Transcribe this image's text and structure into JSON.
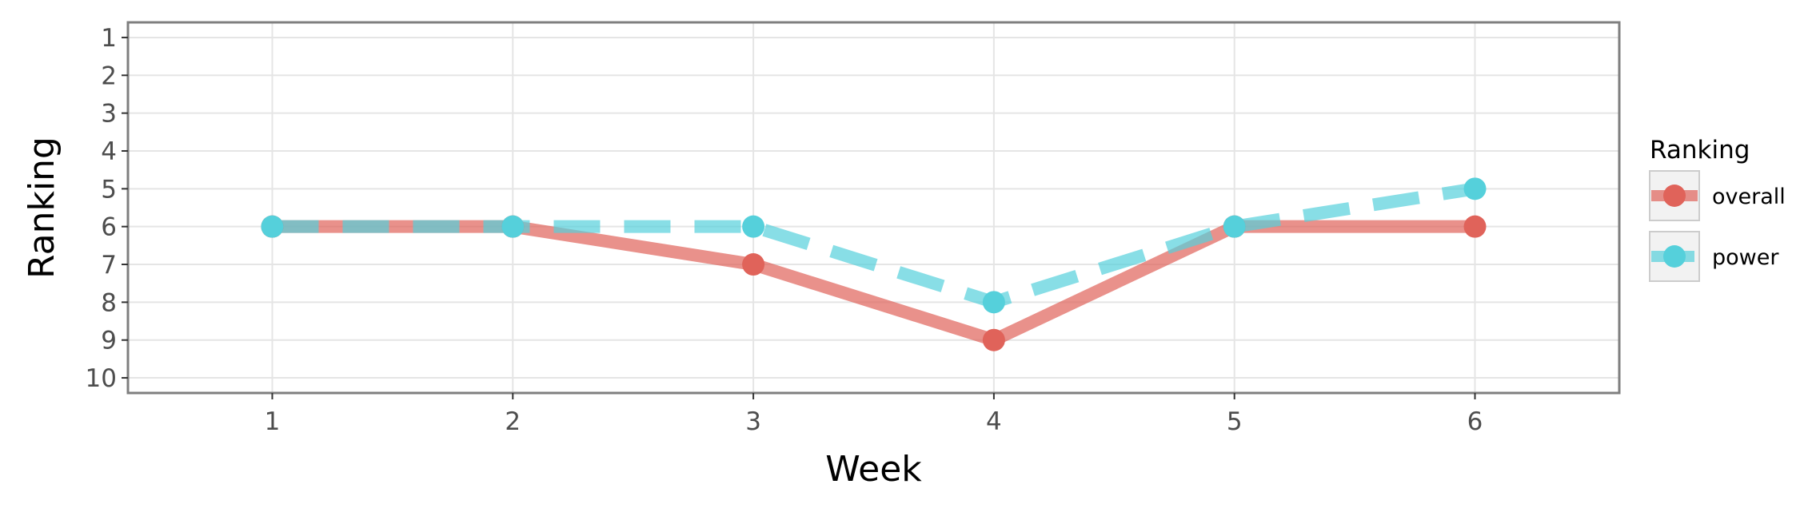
{
  "chart_data": {
    "type": "line",
    "title": "",
    "xlabel": "Week",
    "ylabel": "Ranking",
    "x": [
      1,
      2,
      3,
      4,
      5,
      6
    ],
    "xlim": [
      0.4,
      6.6
    ],
    "ylim": [
      10.4,
      0.6
    ],
    "y_reversed": true,
    "x_ticks": [
      "1",
      "2",
      "3",
      "4",
      "5",
      "6"
    ],
    "y_ticks": [
      "1",
      "2",
      "3",
      "4",
      "5",
      "6",
      "7",
      "8",
      "9",
      "10"
    ],
    "grid": true,
    "legend": {
      "title": "Ranking",
      "position": "right"
    },
    "series": [
      {
        "name": "overall",
        "values": [
          6,
          6,
          7,
          9,
          6,
          6
        ],
        "color": "#e0635a",
        "line_style": "solid"
      },
      {
        "name": "power",
        "values": [
          6,
          6,
          6,
          8,
          6,
          5
        ],
        "color": "#55d0db",
        "line_style": "dashed"
      }
    ]
  }
}
